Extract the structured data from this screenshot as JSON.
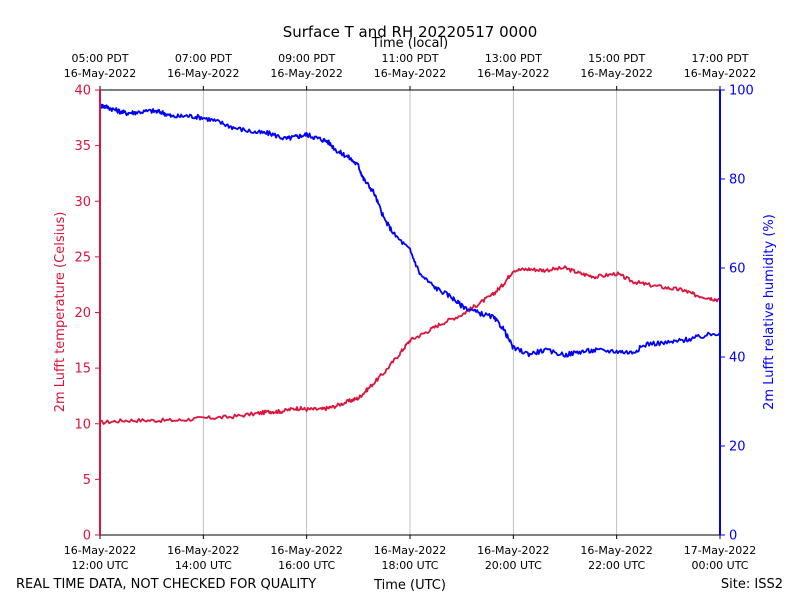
{
  "chart_data": {
    "type": "line",
    "title": "Surface T and RH 20220517 0000",
    "x_bottom_label": "Time (UTC)",
    "x_top_label": "Time (local)",
    "y_left_label": "2m Lufft temperature (Celsius)",
    "y_right_label": "2m Lufft relative humidity (%)",
    "y_left_range": [
      0,
      40
    ],
    "y_right_range": [
      0,
      100
    ],
    "x_range_hours_utc": [
      12,
      24
    ],
    "y_left_ticks": [
      0,
      5,
      10,
      15,
      20,
      25,
      30,
      35,
      40
    ],
    "y_right_ticks": [
      0,
      20,
      40,
      60,
      80,
      100
    ],
    "x_ticks_bottom": [
      {
        "hour": 12,
        "line1": "16-May-2022",
        "line2": "12:00 UTC"
      },
      {
        "hour": 14,
        "line1": "16-May-2022",
        "line2": "14:00 UTC"
      },
      {
        "hour": 16,
        "line1": "16-May-2022",
        "line2": "16:00 UTC"
      },
      {
        "hour": 18,
        "line1": "16-May-2022",
        "line2": "18:00 UTC"
      },
      {
        "hour": 20,
        "line1": "16-May-2022",
        "line2": "20:00 UTC"
      },
      {
        "hour": 22,
        "line1": "16-May-2022",
        "line2": "22:00 UTC"
      },
      {
        "hour": 24,
        "line1": "17-May-2022",
        "line2": "00:00 UTC"
      }
    ],
    "x_ticks_top": [
      {
        "hour": 12,
        "line1": "05:00 PDT",
        "line2": "16-May-2022"
      },
      {
        "hour": 14,
        "line1": "07:00 PDT",
        "line2": "16-May-2022"
      },
      {
        "hour": 16,
        "line1": "09:00 PDT",
        "line2": "16-May-2022"
      },
      {
        "hour": 18,
        "line1": "11:00 PDT",
        "line2": "16-May-2022"
      },
      {
        "hour": 20,
        "line1": "13:00 PDT",
        "line2": "16-May-2022"
      },
      {
        "hour": 22,
        "line1": "15:00 PDT",
        "line2": "16-May-2022"
      },
      {
        "hour": 24,
        "line1": "17:00 PDT",
        "line2": "16-May-2022"
      }
    ],
    "grid": "vertical",
    "series": [
      {
        "name": "temperature",
        "axis": "left",
        "color": "#dc143c",
        "x": [
          12.0,
          12.5,
          13.0,
          13.5,
          14.0,
          14.5,
          15.0,
          15.3,
          15.5,
          15.8,
          16.0,
          16.3,
          16.5,
          16.8,
          17.0,
          17.2,
          17.5,
          17.8,
          18.0,
          18.3,
          18.6,
          19.0,
          19.3,
          19.6,
          19.8,
          20.0,
          20.3,
          20.6,
          21.0,
          21.3,
          21.6,
          22.0,
          22.3,
          22.6,
          23.0,
          23.3,
          23.5,
          23.8,
          24.0
        ],
        "y": [
          10.1,
          10.3,
          10.3,
          10.3,
          10.5,
          10.6,
          10.9,
          11.1,
          11.1,
          11.4,
          11.3,
          11.3,
          11.5,
          12.0,
          12.3,
          13.2,
          14.6,
          16.3,
          17.5,
          18.2,
          19.0,
          19.8,
          20.7,
          21.6,
          22.5,
          23.8,
          23.9,
          23.8,
          24.0,
          23.5,
          23.2,
          23.5,
          22.8,
          22.5,
          22.2,
          22.0,
          21.6,
          21.3,
          21.1
        ]
      },
      {
        "name": "relative humidity",
        "axis": "right",
        "color": "#0000ff",
        "x": [
          12.0,
          12.1,
          12.3,
          12.5,
          12.7,
          13.0,
          13.2,
          13.4,
          13.7,
          14.0,
          14.3,
          14.6,
          15.0,
          15.3,
          15.6,
          15.8,
          16.0,
          16.2,
          16.4,
          16.6,
          16.8,
          17.0,
          17.1,
          17.3,
          17.5,
          17.7,
          18.0,
          18.2,
          18.5,
          18.8,
          19.0,
          19.3,
          19.6,
          19.8,
          20.0,
          20.3,
          20.6,
          21.0,
          21.3,
          21.6,
          22.0,
          22.3,
          22.6,
          23.0,
          23.3,
          23.6,
          24.0
        ],
        "y": [
          96.5,
          96.3,
          95.5,
          94.8,
          95.0,
          95.3,
          95.0,
          94.0,
          94.2,
          93.8,
          92.8,
          91.5,
          90.5,
          90.2,
          89.0,
          89.5,
          90.0,
          89.2,
          88.5,
          86.2,
          85.0,
          83.0,
          80.0,
          77.0,
          71.0,
          67.5,
          64.0,
          58.5,
          55.5,
          53.5,
          51.5,
          50.0,
          49.0,
          46.5,
          42.0,
          40.7,
          41.5,
          40.5,
          41.2,
          41.5,
          41.3,
          41.0,
          43.0,
          43.2,
          43.8,
          44.5,
          45.5
        ]
      }
    ]
  },
  "footer": {
    "disclaimer": "REAL TIME DATA, NOT CHECKED FOR QUALITY",
    "site": "Site: ISS2"
  }
}
